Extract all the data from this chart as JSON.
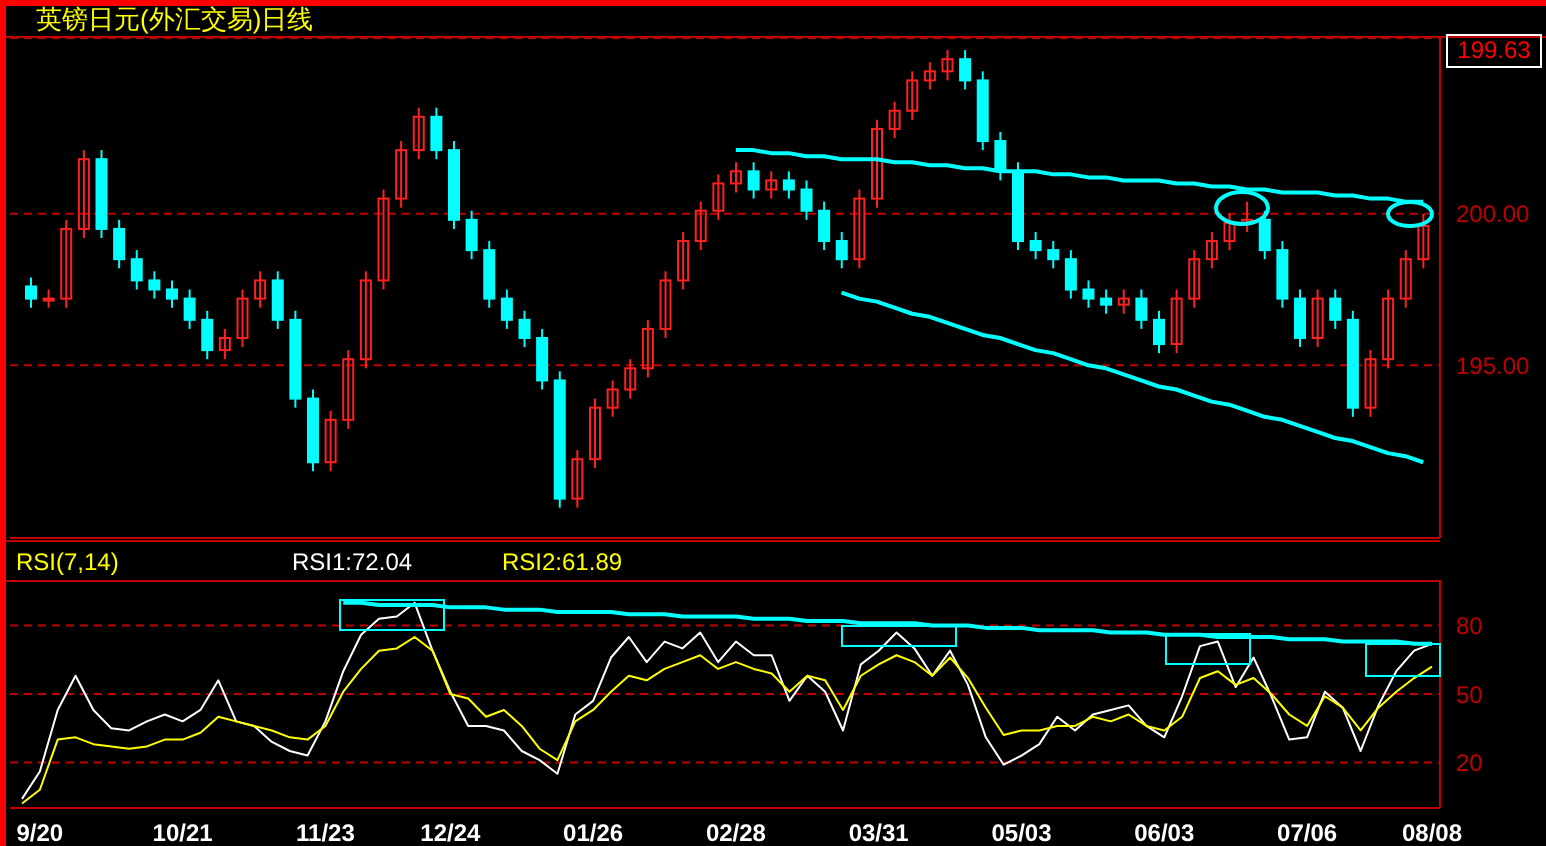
{
  "chart_data": [
    {
      "type": "candlestick",
      "title": "英镑日元(外汇交易)日线",
      "categories": [
        null,
        null,
        null,
        null,
        null,
        null,
        null,
        null,
        null,
        null,
        null,
        null,
        null,
        null,
        null,
        null,
        null,
        null,
        null,
        null,
        null,
        null,
        null,
        null,
        null,
        null,
        null,
        null,
        null,
        null,
        null,
        null,
        null,
        null,
        null,
        null,
        null,
        null,
        null,
        null,
        null,
        null,
        null,
        null,
        null,
        null,
        null,
        null,
        null,
        null,
        null,
        null,
        null,
        null,
        null,
        null,
        null,
        null,
        null,
        null,
        null,
        null,
        null,
        null,
        null,
        null,
        null,
        null,
        null,
        null,
        null,
        null,
        null,
        null,
        null,
        null,
        null,
        null,
        null,
        null
      ],
      "ohlc": [
        [
          197.6,
          197.9,
          196.9,
          197.2
        ],
        [
          197.2,
          197.5,
          196.9,
          197.2
        ],
        [
          197.2,
          199.8,
          196.9,
          199.5
        ],
        [
          199.5,
          202.1,
          199.2,
          201.8
        ],
        [
          201.8,
          202.1,
          199.2,
          199.5
        ],
        [
          199.5,
          199.8,
          198.2,
          198.5
        ],
        [
          198.5,
          198.8,
          197.5,
          197.8
        ],
        [
          197.8,
          198.1,
          197.2,
          197.5
        ],
        [
          197.5,
          197.8,
          196.9,
          197.2
        ],
        [
          197.2,
          197.5,
          196.2,
          196.5
        ],
        [
          196.5,
          196.8,
          195.2,
          195.5
        ],
        [
          195.5,
          196.2,
          195.2,
          195.9
        ],
        [
          195.9,
          197.5,
          195.6,
          197.2
        ],
        [
          197.2,
          198.1,
          196.9,
          197.8
        ],
        [
          197.8,
          198.1,
          196.2,
          196.5
        ],
        [
          196.5,
          196.8,
          193.6,
          193.9
        ],
        [
          193.9,
          194.2,
          191.5,
          191.8
        ],
        [
          191.8,
          193.5,
          191.5,
          193.2
        ],
        [
          193.2,
          195.5,
          192.9,
          195.2
        ],
        [
          195.2,
          198.1,
          194.9,
          197.8
        ],
        [
          197.8,
          200.8,
          197.5,
          200.5
        ],
        [
          200.5,
          202.4,
          200.2,
          202.1
        ],
        [
          202.1,
          203.5,
          201.8,
          203.2
        ],
        [
          203.2,
          203.5,
          201.8,
          202.1
        ],
        [
          202.1,
          202.4,
          199.5,
          199.8
        ],
        [
          199.8,
          200.1,
          198.5,
          198.8
        ],
        [
          198.8,
          199.1,
          196.9,
          197.2
        ],
        [
          197.2,
          197.5,
          196.2,
          196.5
        ],
        [
          196.5,
          196.8,
          195.6,
          195.9
        ],
        [
          195.9,
          196.2,
          194.2,
          194.5
        ],
        [
          194.5,
          194.8,
          190.3,
          190.6
        ],
        [
          190.6,
          192.2,
          190.3,
          191.9
        ],
        [
          191.9,
          193.9,
          191.6,
          193.6
        ],
        [
          193.6,
          194.5,
          193.3,
          194.2
        ],
        [
          194.2,
          195.2,
          193.9,
          194.9
        ],
        [
          194.9,
          196.5,
          194.6,
          196.2
        ],
        [
          196.2,
          198.1,
          195.9,
          197.8
        ],
        [
          197.8,
          199.4,
          197.5,
          199.1
        ],
        [
          199.1,
          200.4,
          198.8,
          200.1
        ],
        [
          200.1,
          201.3,
          199.8,
          201.0
        ],
        [
          201.0,
          201.7,
          200.7,
          201.4
        ],
        [
          201.4,
          201.7,
          200.5,
          200.8
        ],
        [
          200.8,
          201.4,
          200.5,
          201.1
        ],
        [
          201.1,
          201.4,
          200.5,
          200.8
        ],
        [
          200.8,
          201.1,
          199.8,
          200.1
        ],
        [
          200.1,
          200.4,
          198.8,
          199.1
        ],
        [
          199.1,
          199.4,
          198.2,
          198.5
        ],
        [
          198.5,
          200.8,
          198.2,
          200.5
        ],
        [
          200.5,
          203.1,
          200.2,
          202.8
        ],
        [
          202.8,
          203.7,
          202.5,
          203.4
        ],
        [
          203.4,
          204.7,
          203.1,
          204.4
        ],
        [
          204.4,
          205.0,
          204.1,
          204.7
        ],
        [
          204.7,
          205.4,
          204.4,
          205.1
        ],
        [
          205.1,
          205.4,
          204.1,
          204.4
        ],
        [
          204.4,
          204.7,
          202.1,
          202.4
        ],
        [
          202.4,
          202.7,
          201.1,
          201.4
        ],
        [
          201.4,
          201.7,
          198.8,
          199.1
        ],
        [
          199.1,
          199.4,
          198.5,
          198.8
        ],
        [
          198.8,
          199.1,
          198.2,
          198.5
        ],
        [
          198.5,
          198.8,
          197.2,
          197.5
        ],
        [
          197.5,
          197.8,
          196.9,
          197.2
        ],
        [
          197.2,
          197.5,
          196.7,
          197.0
        ],
        [
          197.0,
          197.5,
          196.7,
          197.2
        ],
        [
          197.2,
          197.5,
          196.2,
          196.5
        ],
        [
          196.5,
          196.8,
          195.4,
          195.7
        ],
        [
          195.7,
          197.5,
          195.4,
          197.2
        ],
        [
          197.2,
          198.8,
          196.9,
          198.5
        ],
        [
          198.5,
          199.4,
          198.2,
          199.1
        ],
        [
          199.1,
          200.0,
          198.8,
          199.7
        ],
        [
          199.7,
          200.4,
          199.4,
          199.8
        ],
        [
          199.8,
          200.1,
          198.5,
          198.8
        ],
        [
          198.8,
          199.1,
          196.9,
          197.2
        ],
        [
          197.2,
          197.5,
          195.6,
          195.9
        ],
        [
          195.9,
          197.5,
          195.6,
          197.2
        ],
        [
          197.2,
          197.5,
          196.2,
          196.5
        ],
        [
          196.5,
          196.8,
          193.3,
          193.6
        ],
        [
          193.6,
          195.5,
          193.3,
          195.2
        ],
        [
          195.2,
          197.5,
          194.9,
          197.2
        ],
        [
          197.2,
          198.8,
          196.9,
          198.5
        ],
        [
          198.5,
          200.0,
          198.2,
          199.6
        ]
      ],
      "series": [
        {
          "type": "line",
          "color": "#00ffff",
          "values": [
            null,
            null,
            null,
            null,
            null,
            null,
            null,
            null,
            null,
            null,
            null,
            null,
            null,
            null,
            null,
            null,
            null,
            null,
            null,
            null,
            null,
            null,
            null,
            null,
            null,
            null,
            null,
            null,
            null,
            null,
            null,
            null,
            null,
            null,
            null,
            null,
            null,
            null,
            null,
            null,
            202.1,
            202.1,
            202.0,
            202.0,
            201.9,
            201.9,
            201.8,
            201.8,
            201.8,
            201.7,
            201.7,
            201.6,
            201.6,
            201.5,
            201.5,
            201.4,
            201.4,
            201.4,
            201.3,
            201.3,
            201.2,
            201.2,
            201.1,
            201.1,
            201.1,
            201.0,
            201.0,
            200.9,
            200.9,
            200.8,
            200.8,
            200.7,
            200.7,
            200.7,
            200.6,
            200.6,
            200.5,
            200.5,
            200.4,
            200.4
          ]
        },
        {
          "type": "line",
          "color": "#00ffff",
          "values": [
            null,
            null,
            null,
            null,
            null,
            null,
            null,
            null,
            null,
            null,
            null,
            null,
            null,
            null,
            null,
            null,
            null,
            null,
            null,
            null,
            null,
            null,
            null,
            null,
            null,
            null,
            null,
            null,
            null,
            null,
            null,
            null,
            null,
            null,
            null,
            null,
            null,
            null,
            null,
            null,
            null,
            null,
            null,
            null,
            null,
            null,
            197.4,
            197.2,
            197.1,
            196.9,
            196.7,
            196.6,
            196.4,
            196.2,
            196.0,
            195.9,
            195.7,
            195.5,
            195.4,
            195.2,
            195.0,
            194.9,
            194.7,
            194.5,
            194.3,
            194.2,
            194.0,
            193.8,
            193.7,
            193.5,
            193.3,
            193.2,
            193.0,
            192.8,
            192.6,
            192.5,
            192.3,
            192.1,
            192.0,
            191.8
          ]
        }
      ],
      "ylim": [
        189.3,
        205.8
      ],
      "yticks": [
        {
          "value": 195,
          "label": "195.00"
        },
        {
          "value": 200,
          "label": "200.00"
        }
      ],
      "grid": "y",
      "annotations": [
        "199.63"
      ]
    },
    {
      "type": "line",
      "legend_title": "RSI(7,14)",
      "legend": "top left",
      "categories": [
        null,
        "9/20",
        null,
        null,
        null,
        null,
        null,
        null,
        null,
        "10/21",
        null,
        null,
        null,
        null,
        null,
        null,
        null,
        "11/23",
        null,
        null,
        null,
        null,
        null,
        null,
        "12/24",
        null,
        null,
        null,
        null,
        null,
        null,
        null,
        "01/26",
        null,
        null,
        null,
        null,
        null,
        null,
        null,
        "02/28",
        null,
        null,
        null,
        null,
        null,
        null,
        null,
        "03/31",
        null,
        null,
        null,
        null,
        null,
        null,
        null,
        "05/03",
        null,
        null,
        null,
        null,
        null,
        null,
        null,
        "06/03",
        null,
        null,
        null,
        null,
        null,
        null,
        null,
        "07/06",
        null,
        null,
        null,
        null,
        null,
        null,
        "08/08"
      ],
      "series": [
        {
          "name": "RSI1:72.04",
          "color": "#ffffff",
          "values": [
            4,
            16,
            43,
            58,
            43,
            35,
            34,
            38,
            41,
            38,
            43,
            56,
            38,
            36,
            29,
            25,
            23,
            38,
            60,
            76,
            83,
            84,
            90,
            69,
            51,
            36,
            36,
            34,
            25,
            21,
            15,
            41,
            47,
            66,
            75,
            64,
            73,
            70,
            77,
            64,
            73,
            67,
            67,
            47,
            58,
            51,
            34,
            63,
            69,
            77,
            70,
            58,
            69,
            54,
            31,
            19,
            23,
            28,
            40,
            34,
            41,
            43,
            45,
            36,
            31,
            49,
            71,
            73,
            53,
            66,
            49,
            30,
            31,
            51,
            44,
            25,
            45,
            60,
            69,
            72
          ]
        },
        {
          "name": "RSI2:61.89",
          "color": "#ffff00",
          "values": [
            2,
            8,
            30,
            31,
            28,
            27,
            26,
            27,
            30,
            30,
            33,
            40,
            38,
            36,
            34,
            31,
            30,
            36,
            51,
            61,
            69,
            70,
            75,
            69,
            50,
            48,
            40,
            43,
            36,
            26,
            21,
            38,
            43,
            51,
            58,
            56,
            61,
            64,
            67,
            61,
            64,
            61,
            59,
            51,
            58,
            56,
            43,
            58,
            63,
            67,
            64,
            58,
            66,
            57,
            44,
            32,
            34,
            34,
            36,
            36,
            40,
            38,
            41,
            36,
            34,
            40,
            57,
            60,
            54,
            57,
            50,
            41,
            36,
            49,
            44,
            34,
            44,
            51,
            57,
            62
          ]
        },
        {
          "type": "line",
          "color": "#00ffff",
          "values": [
            null,
            null,
            null,
            null,
            null,
            null,
            null,
            null,
            null,
            null,
            null,
            null,
            null,
            null,
            null,
            null,
            null,
            null,
            90,
            90,
            89,
            89,
            89,
            89,
            88,
            88,
            88,
            87,
            87,
            87,
            86,
            86,
            86,
            86,
            85,
            85,
            85,
            84,
            84,
            84,
            84,
            83,
            83,
            83,
            82,
            82,
            82,
            81,
            81,
            81,
            81,
            80,
            80,
            80,
            79,
            79,
            79,
            78,
            78,
            78,
            78,
            77,
            77,
            77,
            76,
            76,
            76,
            75,
            75,
            75,
            75,
            74,
            74,
            74,
            73,
            73,
            73,
            73,
            72,
            72
          ]
        }
      ],
      "ylim": [
        0,
        100
      ],
      "yticks": [
        20,
        50,
        80
      ],
      "grid": "y"
    }
  ]
}
